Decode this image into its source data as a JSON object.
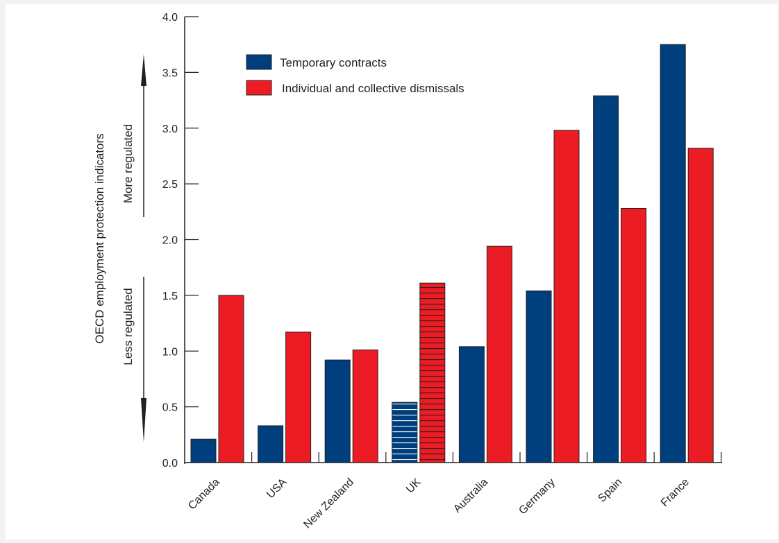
{
  "chart_data": {
    "type": "bar",
    "categories": [
      "Canada",
      "USA",
      "New Zealand",
      "UK",
      "Australia",
      "Germany",
      "Spain",
      "France"
    ],
    "series": [
      {
        "name": "Temporary contracts",
        "color": "#003f7d",
        "values": [
          0.21,
          0.33,
          0.92,
          0.54,
          1.04,
          1.54,
          3.29,
          3.75
        ]
      },
      {
        "name": "Individual and collective dismissals",
        "color": "#ec1c24",
        "values": [
          1.5,
          1.17,
          1.01,
          1.61,
          1.94,
          2.98,
          2.28,
          2.82
        ]
      }
    ],
    "highlighted_category": "UK",
    "highlight_pattern": "horizontal-hatch",
    "ylabel": "OECD employment protection indicators",
    "ylim": [
      0,
      4
    ],
    "yticks": [
      0.0,
      0.5,
      1.0,
      1.5,
      2.0,
      2.5,
      3.0,
      3.5,
      4.0
    ],
    "ytick_labels": [
      "0.0",
      "0.5",
      "1.0",
      "1.5",
      "2.0",
      "2.5",
      "3.0",
      "3.5",
      "4.0"
    ],
    "annotations": {
      "up": "More regulated",
      "down": "Less regulated"
    },
    "legend_position": "top-left",
    "grid": false
  }
}
